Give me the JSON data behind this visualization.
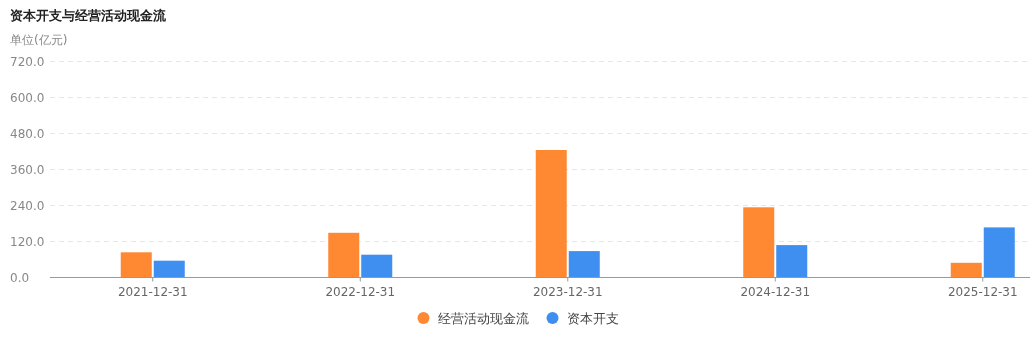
{
  "chart_data": {
    "type": "bar",
    "title": "资本开支与经营活动现金流",
    "ylabel": "单位(亿元)",
    "categories": [
      "2021-12-31",
      "2022-12-31",
      "2023-12-31",
      "2024-12-31",
      "2025-12-31"
    ],
    "series": [
      {
        "name": "经营活动现金流",
        "color": "#ff8833",
        "values": [
          84,
          149,
          425,
          234,
          49
        ]
      },
      {
        "name": "资本开支",
        "color": "#3f8ff0",
        "values": [
          56,
          76,
          88,
          108,
          167
        ]
      }
    ],
    "ylim": [
      0,
      720
    ],
    "yticks": [
      {
        "value": 0,
        "label": "0.0"
      },
      {
        "value": 120,
        "label": "120.0"
      },
      {
        "value": 240,
        "label": "240.0"
      },
      {
        "value": 360,
        "label": "360.0"
      },
      {
        "value": 480,
        "label": "480.0"
      },
      {
        "value": 600,
        "label": "600.0"
      },
      {
        "value": 720,
        "label": "720.0"
      }
    ],
    "grid": "y",
    "legend": "bottom"
  }
}
